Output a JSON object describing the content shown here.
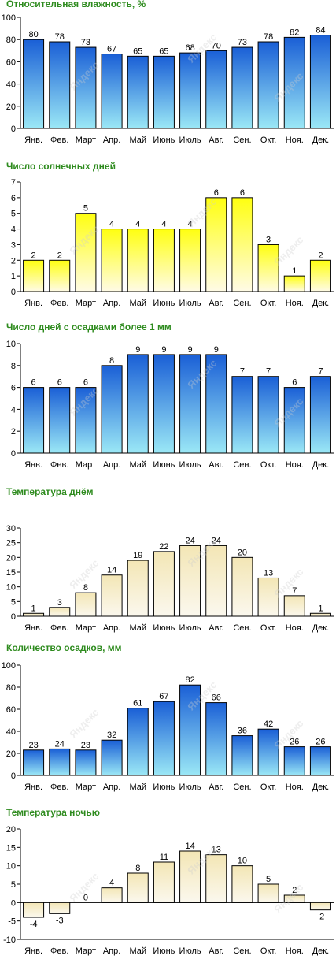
{
  "months": [
    "Янв.",
    "Фев.",
    "Март",
    "Апр.",
    "Май",
    "Июнь",
    "Июль",
    "Авг.",
    "Сен.",
    "Окт.",
    "Ноя.",
    "Дек."
  ],
  "watermark": "Яндекс",
  "chart_data": [
    {
      "type": "bar",
      "title": "Относительная влажность, %",
      "categories": [
        "Янв.",
        "Фев.",
        "Март",
        "Апр.",
        "Май",
        "Июнь",
        "Июль",
        "Авг.",
        "Сен.",
        "Окт.",
        "Ноя.",
        "Дек."
      ],
      "values": [
        80,
        78,
        73,
        67,
        65,
        65,
        68,
        70,
        73,
        78,
        82,
        84
      ],
      "ylim": [
        0,
        100
      ],
      "yticks": [
        0,
        20,
        40,
        60,
        80,
        100
      ],
      "style": "blue"
    },
    {
      "type": "bar",
      "title": "Число солнечных дней",
      "categories": [
        "Янв.",
        "Фев.",
        "Март",
        "Апр.",
        "Май",
        "Июнь",
        "Июль",
        "Авг.",
        "Сен.",
        "Окт.",
        "Ноя.",
        "Дек."
      ],
      "values": [
        2,
        2,
        5,
        4,
        4,
        4,
        4,
        6,
        6,
        3,
        1,
        2
      ],
      "ylim": [
        0,
        7
      ],
      "yticks": [
        0,
        1,
        2,
        3,
        4,
        5,
        6,
        7
      ],
      "style": "yellow"
    },
    {
      "type": "bar",
      "title": "Число дней с осадками более 1 мм",
      "categories": [
        "Янв.",
        "Фев.",
        "Март",
        "Апр.",
        "Май",
        "Июнь",
        "Июль",
        "Авг.",
        "Сен.",
        "Окт.",
        "Ноя.",
        "Дек."
      ],
      "values": [
        6,
        6,
        6,
        8,
        9,
        9,
        9,
        9,
        7,
        7,
        6,
        7
      ],
      "ylim": [
        0,
        10
      ],
      "yticks": [
        0,
        2,
        4,
        6,
        8,
        10
      ],
      "style": "blue"
    },
    {
      "type": "bar",
      "title": "Температура днём",
      "categories": [
        "Янв.",
        "Фев.",
        "Март",
        "Апр.",
        "Май",
        "Июнь",
        "Июль",
        "Авг.",
        "Сен.",
        "Окт.",
        "Ноя.",
        "Дек."
      ],
      "values": [
        1,
        3,
        8,
        14,
        19,
        22,
        24,
        24,
        20,
        13,
        7,
        1
      ],
      "ylim": [
        0,
        30
      ],
      "yticks": [
        0,
        5,
        10,
        15,
        20,
        25,
        30
      ],
      "style": "cream"
    },
    {
      "type": "bar",
      "title": "Количество осадков, мм",
      "categories": [
        "Янв.",
        "Фев.",
        "Март",
        "Апр.",
        "Май",
        "Июнь",
        "Июль",
        "Авг.",
        "Сен.",
        "Окт.",
        "Ноя.",
        "Дек."
      ],
      "values": [
        23,
        24,
        23,
        32,
        61,
        67,
        82,
        66,
        36,
        42,
        26,
        26
      ],
      "ylim": [
        0,
        100
      ],
      "yticks": [
        0,
        20,
        40,
        60,
        80,
        100
      ],
      "style": "blue"
    },
    {
      "type": "bar",
      "title": "Температура ночью",
      "categories": [
        "Янв.",
        "Фев.",
        "Март",
        "Апр.",
        "Май",
        "Июнь",
        "Июль",
        "Авг.",
        "Сен.",
        "Окт.",
        "Ноя.",
        "Дек."
      ],
      "values": [
        -4,
        -3,
        0,
        4,
        8,
        11,
        14,
        13,
        10,
        5,
        2,
        -2
      ],
      "ylim": [
        -10,
        20
      ],
      "yticks": [
        -10,
        -5,
        0,
        5,
        10,
        15,
        20
      ],
      "style": "cream"
    }
  ]
}
